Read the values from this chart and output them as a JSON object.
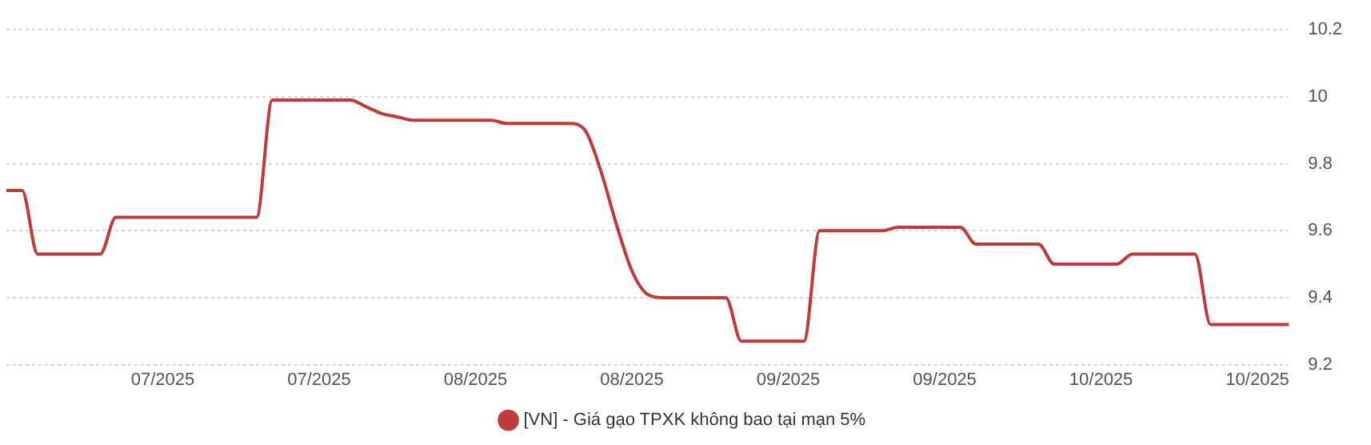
{
  "chart_data": {
    "type": "line",
    "categories": [
      null,
      null,
      null,
      null,
      null,
      null,
      null,
      null,
      null,
      null,
      "07/2025",
      null,
      null,
      null,
      null,
      null,
      null,
      null,
      null,
      null,
      "07/2025",
      null,
      null,
      null,
      null,
      null,
      null,
      null,
      null,
      null,
      "08/2025",
      null,
      null,
      null,
      null,
      null,
      null,
      null,
      null,
      null,
      "08/2025",
      null,
      null,
      null,
      null,
      null,
      null,
      null,
      null,
      null,
      "09/2025",
      null,
      null,
      null,
      null,
      null,
      null,
      null,
      null,
      null,
      "09/2025",
      null,
      null,
      null,
      null,
      null,
      null,
      null,
      null,
      null,
      "10/2025",
      null,
      null,
      null,
      null,
      null,
      null,
      null,
      null,
      null,
      "10/2025",
      null,
      null
    ],
    "series": [
      {
        "name": "[VN] - Giá gạo TPXK không bao tại mạn 5%",
        "color": "#c0393b",
        "values": [
          9.72,
          9.72,
          9.53,
          9.53,
          9.53,
          9.53,
          9.53,
          9.64,
          9.64,
          9.64,
          9.64,
          9.64,
          9.64,
          9.64,
          9.64,
          9.64,
          9.64,
          9.99,
          9.99,
          9.99,
          9.99,
          9.99,
          9.99,
          9.97,
          9.95,
          9.94,
          9.93,
          9.93,
          9.93,
          9.93,
          9.93,
          9.93,
          9.92,
          9.92,
          9.92,
          9.92,
          9.92,
          9.9,
          9.78,
          9.62,
          9.48,
          9.41,
          9.4,
          9.4,
          9.4,
          9.4,
          9.4,
          9.27,
          9.27,
          9.27,
          9.27,
          9.27,
          9.6,
          9.6,
          9.6,
          9.6,
          9.6,
          9.61,
          9.61,
          9.61,
          9.61,
          9.61,
          9.56,
          9.56,
          9.56,
          9.56,
          9.56,
          9.5,
          9.5,
          9.5,
          9.5,
          9.5,
          9.53,
          9.53,
          9.53,
          9.53,
          9.53,
          9.32,
          9.32,
          9.32,
          9.32,
          9.32,
          9.32
        ]
      }
    ],
    "ylim": [
      9.2,
      10.2
    ],
    "yticks": [
      9.2,
      9.4,
      9.6,
      9.8,
      10,
      10.2
    ],
    "grid": "y",
    "legend": "bottom",
    "marker": "none",
    "line_style": "solid"
  }
}
